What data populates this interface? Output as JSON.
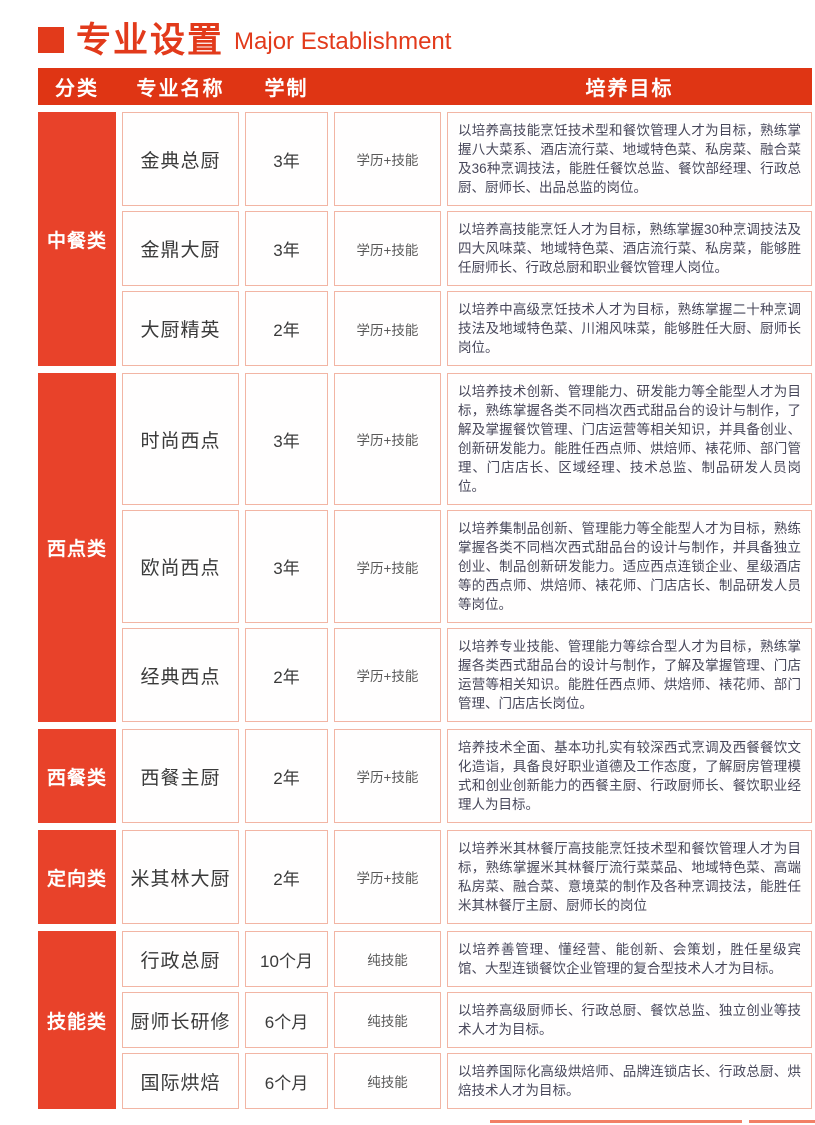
{
  "header": {
    "title_zh": "专业设置",
    "title_en": "Major Establishment"
  },
  "colors": {
    "title_red": "#e23a1b",
    "header_bar_red": "#df3514",
    "category_red": "#e8422a",
    "cell_border_salmon": "#f2b5a4",
    "body_text": "#47475a"
  },
  "table": {
    "headers": [
      "分类",
      "专业名称",
      "学制",
      "",
      "培养目标"
    ],
    "groups": [
      {
        "category": "中餐类",
        "rows": [
          {
            "major": "金典总厨",
            "duration": "3年",
            "mode": "学历+技能",
            "objective": "以培养高技能烹饪技术型和餐饮管理人才为目标，熟练掌握八大菜系、酒店流行菜、地域特色菜、私房菜、融合菜及36种烹调技法，能胜任餐饮总监、餐饮部经理、行政总厨、厨师长、出品总监的岗位。"
          },
          {
            "major": "金鼎大厨",
            "duration": "3年",
            "mode": "学历+技能",
            "objective": "以培养高技能烹饪人才为目标，熟练掌握30种烹调技法及四大风味菜、地域特色菜、酒店流行菜、私房菜，能够胜任厨师长、行政总厨和职业餐饮管理人岗位。"
          },
          {
            "major": "大厨精英",
            "duration": "2年",
            "mode": "学历+技能",
            "objective": "以培养中高级烹饪技术人才为目标，熟练掌握二十种烹调技法及地域特色菜、川湘风味菜，能够胜任大厨、厨师长岗位。"
          }
        ]
      },
      {
        "category": "西点类",
        "rows": [
          {
            "major": "时尚西点",
            "duration": "3年",
            "mode": "学历+技能",
            "objective": "以培养技术创新、管理能力、研发能力等全能型人才为目标，熟练掌握各类不同档次西式甜品台的设计与制作，了解及掌握餐饮管理、门店运营等相关知识，并具备创业、创新研发能力。能胜任西点师、烘焙师、裱花师、部门管理、门店店长、区域经理、技术总监、制品研发人员岗位。"
          },
          {
            "major": "欧尚西点",
            "duration": "3年",
            "mode": "学历+技能",
            "objective": "以培养集制品创新、管理能力等全能型人才为目标，熟练掌握各类不同档次西式甜品台的设计与制作，并具备独立创业、制品创新研发能力。适应西点连锁企业、星级酒店等的西点师、烘焙师、裱花师、门店店长、制品研发人员等岗位。"
          },
          {
            "major": "经典西点",
            "duration": "2年",
            "mode": "学历+技能",
            "objective": "以培养专业技能、管理能力等综合型人才为目标，熟练掌握各类西式甜品台的设计与制作，了解及掌握管理、门店运营等相关知识。能胜任西点师、烘焙师、裱花师、部门管理、门店店长岗位。"
          }
        ]
      },
      {
        "category": "西餐类",
        "rows": [
          {
            "major": "西餐主厨",
            "duration": "2年",
            "mode": "学历+技能",
            "objective": "培养技术全面、基本功扎实有较深西式烹调及西餐餐饮文化造诣，具备良好职业道德及工作态度，了解厨房管理模式和创业创新能力的西餐主厨、行政厨师长、餐饮职业经理人为目标。"
          }
        ]
      },
      {
        "category": "定向类",
        "rows": [
          {
            "major": "米其林大厨",
            "duration": "2年",
            "mode": "学历+技能",
            "objective": "以培养米其林餐厅高技能烹饪技术型和餐饮管理人才为目标，熟练掌握米其林餐厅流行菜菜品、地域特色菜、高端私房菜、融合菜、意境菜的制作及各种烹调技法，能胜任米其林餐厅主厨、厨师长的岗位"
          }
        ]
      },
      {
        "category": "技能类",
        "rows": [
          {
            "major": "行政总厨",
            "duration": "10个月",
            "mode": "纯技能",
            "objective": "以培养善管理、懂经营、能创新、会策划，胜任星级宾馆、大型连锁餐饮企业管理的复合型技术人才为目标。"
          },
          {
            "major": "厨师长研修",
            "duration": "6个月",
            "mode": "纯技能",
            "objective": "以培养高级厨师长、行政总厨、餐饮总监、独立创业等技术人才为目标。"
          },
          {
            "major": "国际烘焙",
            "duration": "6个月",
            "mode": "纯技能",
            "objective": "以培养国际化高级烘焙师、品牌连锁店长、行政总厨、烘焙技术人才为目标。"
          }
        ]
      }
    ]
  }
}
